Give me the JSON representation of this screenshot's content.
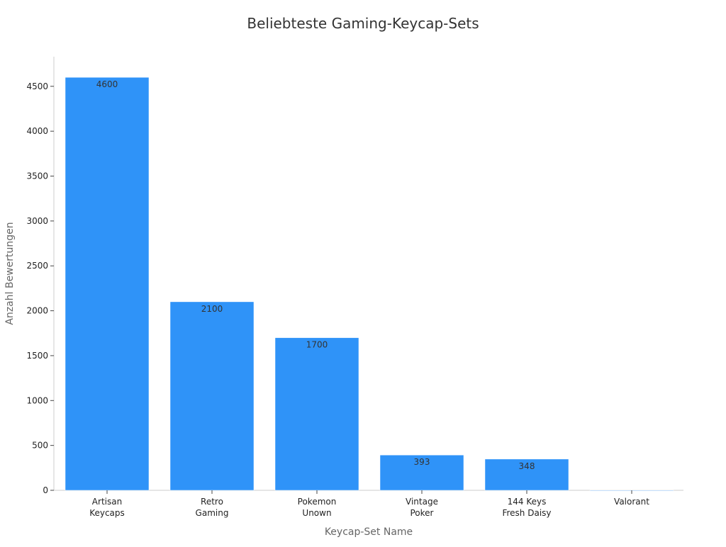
{
  "chart_data": {
    "type": "bar",
    "title": "Beliebteste Gaming-Keycap-Sets",
    "xlabel": "Keycap-Set Name",
    "ylabel": "Anzahl Bewertungen",
    "categories": [
      [
        "Artisan",
        "Keycaps"
      ],
      [
        "Retro",
        "Gaming"
      ],
      [
        "Pokemon",
        "Unown"
      ],
      [
        "Vintage",
        "Poker"
      ],
      [
        "144 Keys",
        "Fresh Daisy"
      ],
      [
        "Valorant"
      ]
    ],
    "values": [
      4600,
      2100,
      1700,
      393,
      348,
      0
    ],
    "data_labels": [
      "4600",
      "2100",
      "1700",
      "393",
      "348",
      ""
    ],
    "ylim": [
      0,
      4830
    ],
    "yticks": [
      0,
      500,
      1000,
      1500,
      2000,
      2500,
      3000,
      3500,
      4000,
      4500
    ],
    "grid": false,
    "bar_color": "#2f93f8",
    "axis_color": "#cccccc"
  }
}
